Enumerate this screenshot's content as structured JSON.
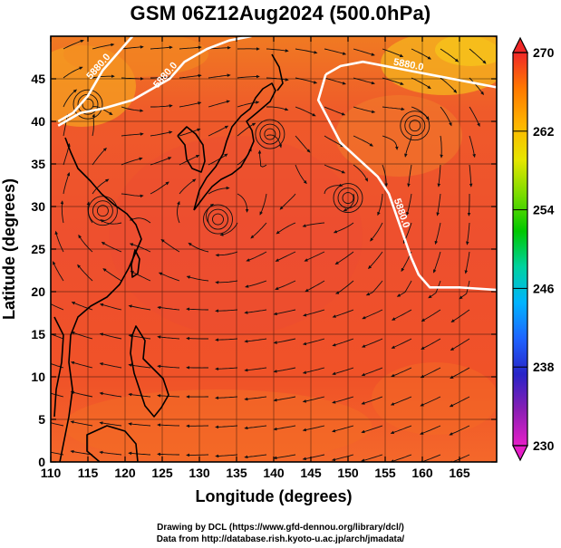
{
  "title": "GSM 06Z12Aug2024 (500.0hPa)",
  "axes": {
    "xlabel": "Longitude (degrees)",
    "ylabel": "Latitude  (degrees)",
    "xlim": [
      110,
      170
    ],
    "ylim": [
      0,
      50
    ],
    "xticks": [
      110,
      115,
      120,
      125,
      130,
      135,
      140,
      145,
      150,
      155,
      160,
      165
    ],
    "yticks": [
      0,
      5,
      10,
      15,
      20,
      25,
      30,
      35,
      40,
      45
    ],
    "grid": true
  },
  "colorbar": {
    "ticks": [
      230,
      238,
      246,
      254,
      262,
      270
    ],
    "range": [
      230,
      270
    ],
    "colors": [
      "#e61ec8",
      "#8a1eb4",
      "#2824c8",
      "#1e64ff",
      "#00b4ff",
      "#00d2a0",
      "#00c800",
      "#78dc00",
      "#e6e600",
      "#ffb400",
      "#ff7800",
      "#f02828"
    ]
  },
  "contour_labels": [
    "5880.0",
    "5880.0",
    "5880.0",
    "5880.0"
  ],
  "credits": {
    "line1": "Drawing by DCL (https://www.gfd-dennou.org/library/dcl/)",
    "line2": "Data from http://database.rish.kyoto-u.ac.jp/arch/jmadata/"
  },
  "chart_data": {
    "type": "heatmap",
    "title": "GSM 06Z12Aug2024 (500.0hPa)",
    "xlabel": "Longitude (degrees)",
    "ylabel": "Latitude  (degrees)",
    "xlim": [
      110,
      170
    ],
    "ylim": [
      0,
      50
    ],
    "color_range": [
      230,
      270
    ],
    "contour_level": 5880.0,
    "contour_5880": [
      {
        "name": "5880.0",
        "points": [
          [
            111,
            40
          ],
          [
            113,
            41
          ],
          [
            115,
            43
          ],
          [
            117,
            46
          ],
          [
            119,
            48
          ],
          [
            121,
            50
          ]
        ]
      },
      {
        "name": "5880.0",
        "points": [
          [
            111,
            39.5
          ],
          [
            114,
            41
          ],
          [
            117,
            41.5
          ],
          [
            121,
            42.5
          ],
          [
            126,
            45
          ],
          [
            128,
            47
          ],
          [
            131,
            48.5
          ],
          [
            134,
            49.5
          ],
          [
            137,
            50
          ]
        ]
      },
      {
        "name": "5880.0",
        "points": [
          [
            147,
            45.5
          ],
          [
            149,
            46.5
          ],
          [
            152,
            47
          ],
          [
            155,
            46.5
          ],
          [
            158,
            46
          ],
          [
            161,
            45.5
          ],
          [
            164,
            45
          ],
          [
            167,
            44.5
          ],
          [
            170,
            44
          ]
        ]
      },
      {
        "name": "5880.0",
        "points": [
          [
            147,
            45.5
          ],
          [
            146,
            42.5
          ],
          [
            147.5,
            40
          ],
          [
            149,
            37.5
          ],
          [
            151.5,
            35.5
          ],
          [
            154,
            33.5
          ],
          [
            155.5,
            31.5
          ],
          [
            156.5,
            29
          ],
          [
            157.5,
            26.5
          ],
          [
            158.5,
            24
          ],
          [
            159.5,
            22
          ],
          [
            161,
            20.5
          ],
          [
            165,
            20.5
          ],
          [
            170,
            20.2
          ]
        ]
      }
    ],
    "circulation_centers": [
      [
        132.5,
        28.5
      ],
      [
        117,
        29.5
      ],
      [
        150,
        31
      ],
      [
        159,
        39.5
      ],
      [
        115,
        42
      ],
      [
        139.5,
        38.5
      ]
    ]
  }
}
